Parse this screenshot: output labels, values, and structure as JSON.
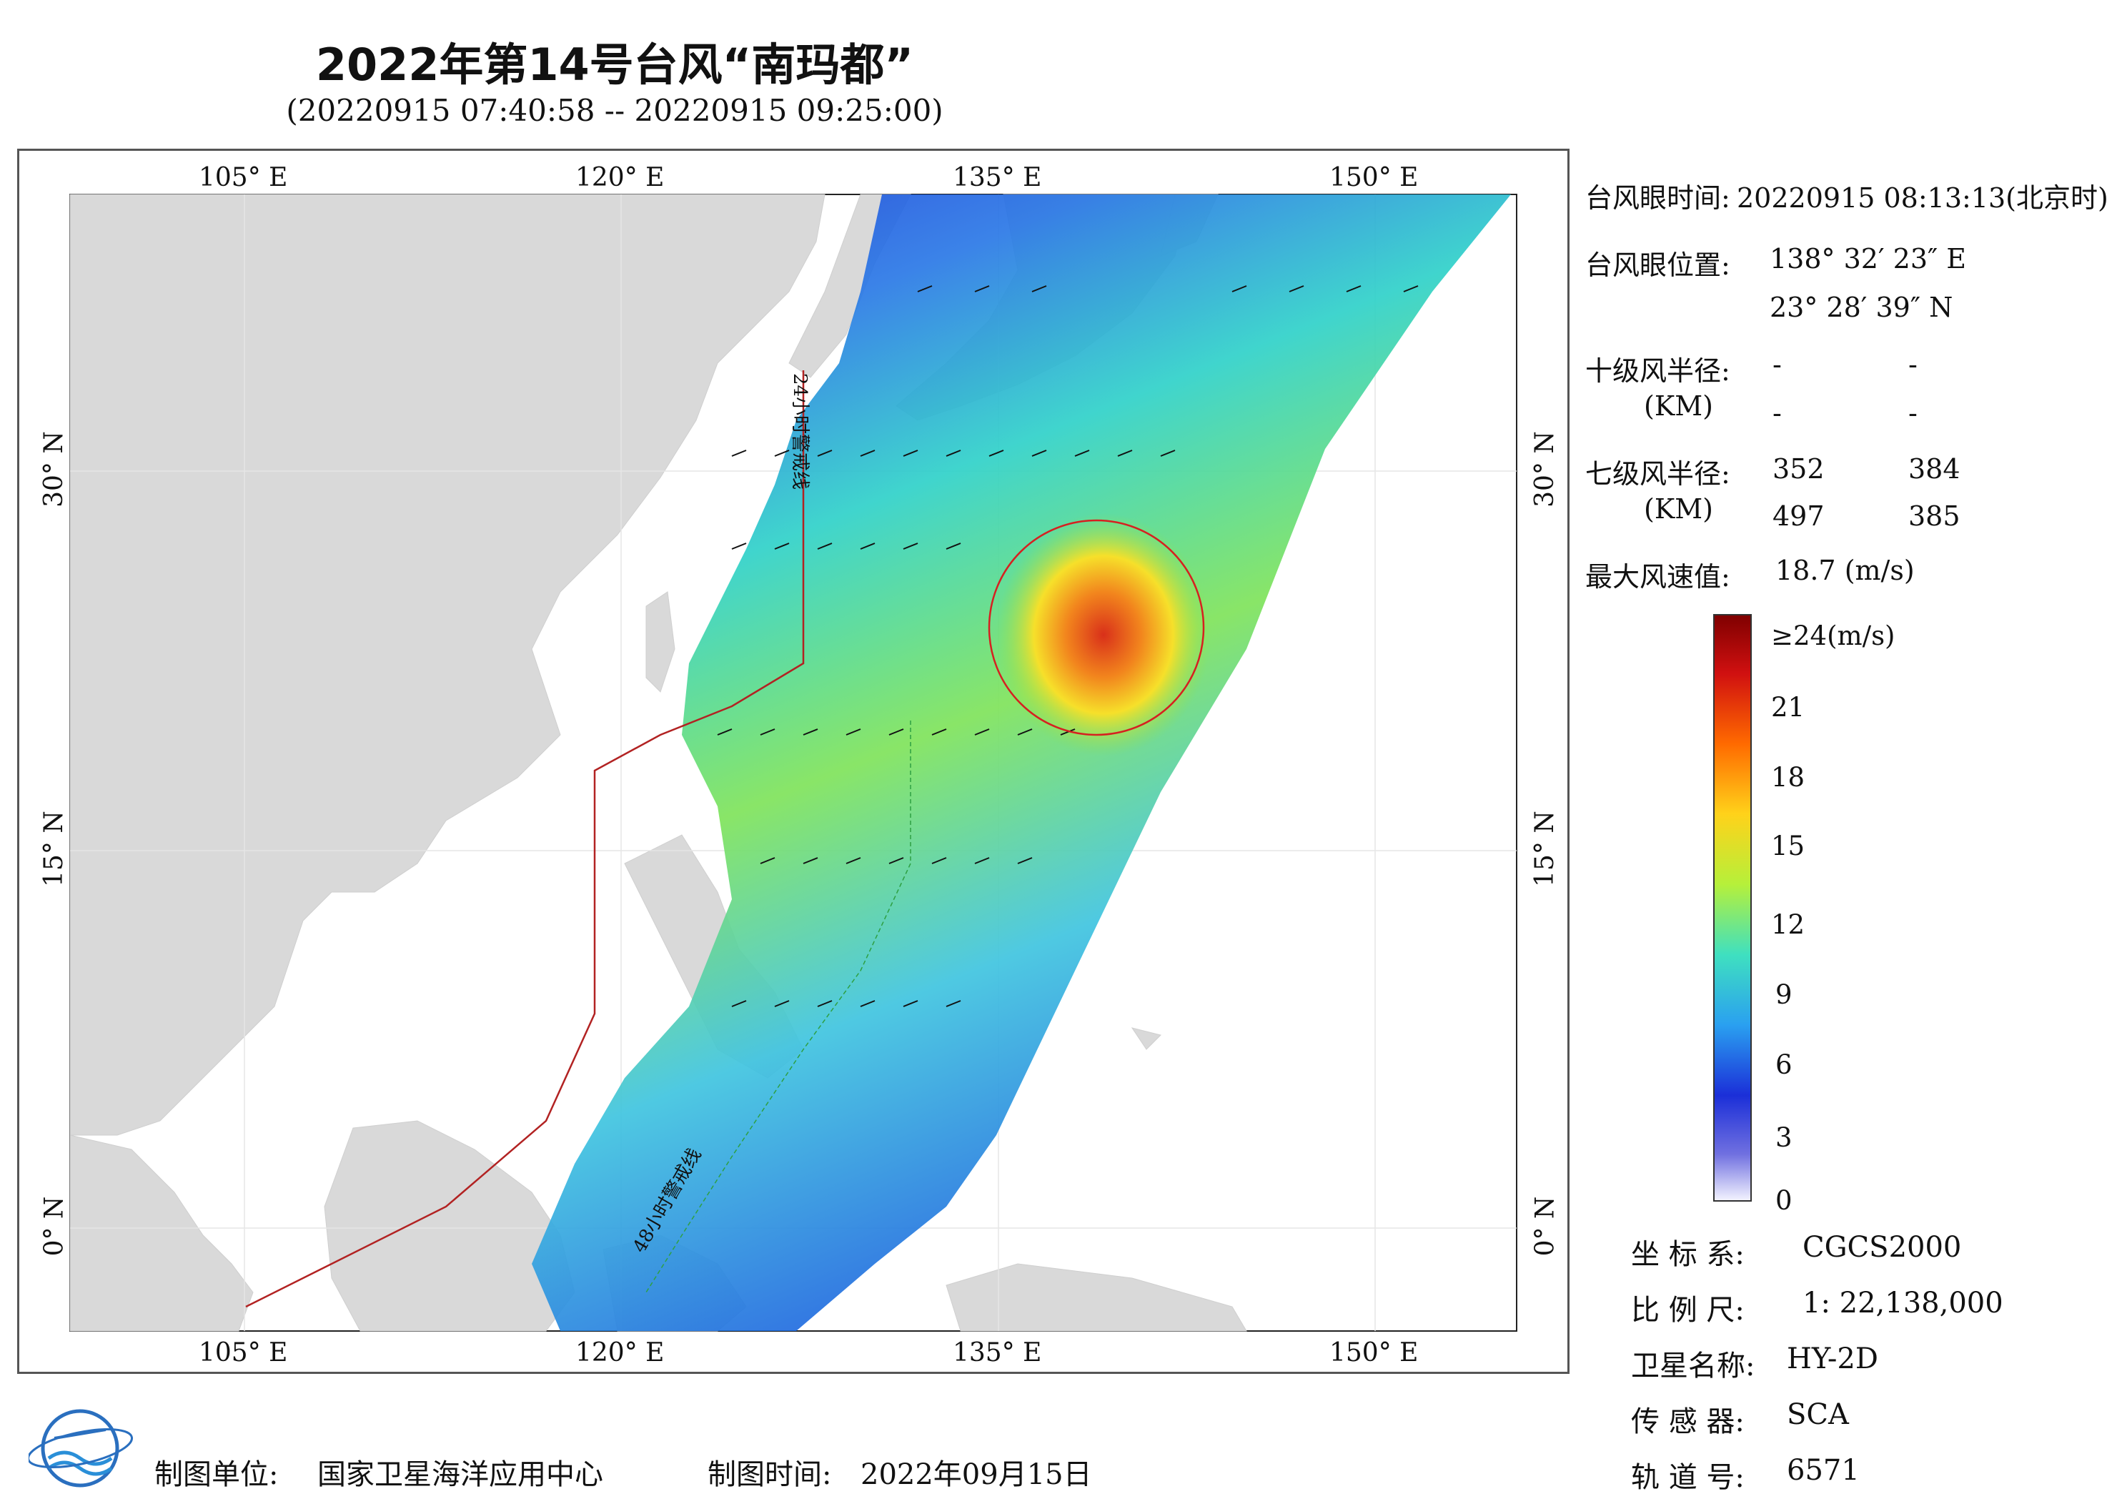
{
  "title": "2022年第14号台风“南玛都”",
  "subtitle": "(20220915 07:40:58 -- 20220915 09:25:00)",
  "map": {
    "top_lon_labels": [
      "105° E",
      "120° E",
      "135° E",
      "150° E"
    ],
    "bottom_lon_labels": [
      "105° E",
      "120° E",
      "135° E",
      "150° E"
    ],
    "lat_labels": [
      "30° N",
      "15° N",
      "0° N"
    ],
    "warning_line_24h": "24小时警戒线",
    "warning_line_48h": "48小时警戒线"
  },
  "typhoon_info": {
    "eye_time_label": "台风眼时间:",
    "eye_time_value": "20220915 08:13:13(北京时)",
    "eye_pos_label": "台风眼位置:",
    "eye_lon": "138° 32′ 23″ E",
    "eye_lat": "23° 28′ 39″ N",
    "r10_label": "十级风半径:",
    "r10_unit": "(KM)",
    "r10_values": [
      "-",
      "-",
      "-",
      "-"
    ],
    "r7_label": "七级风半径:",
    "r7_unit": "(KM)",
    "r7_values": [
      "352",
      "384",
      "497",
      "385"
    ],
    "max_wind_label": "最大风速值:",
    "max_wind_value": "18.7  (m/s)"
  },
  "colorbar": {
    "labels": [
      "≥24(m/s)",
      "21",
      "18",
      "15",
      "12",
      "9",
      "6",
      "3",
      "0"
    ]
  },
  "metadata": {
    "crs_label": "坐 标 系:",
    "crs_value": "CGCS2000",
    "scale_label": "比 例 尺:",
    "scale_value": "1: 22,138,000",
    "satellite_label": "卫星名称:",
    "satellite_value": "HY-2D",
    "sensor_label": "传 感 器:",
    "sensor_value": "SCA",
    "orbit_label": "轨 道 号:",
    "orbit_value": "6571"
  },
  "footer": {
    "org_label": "制图单位:",
    "org_value": "国家卫星海洋应用中心",
    "date_label": "制图时间:",
    "date_value": "2022年09月15日"
  },
  "colors": {
    "land": "#d9d9d9",
    "warning_line": "#b22222",
    "eye_circle": "#d62020"
  }
}
